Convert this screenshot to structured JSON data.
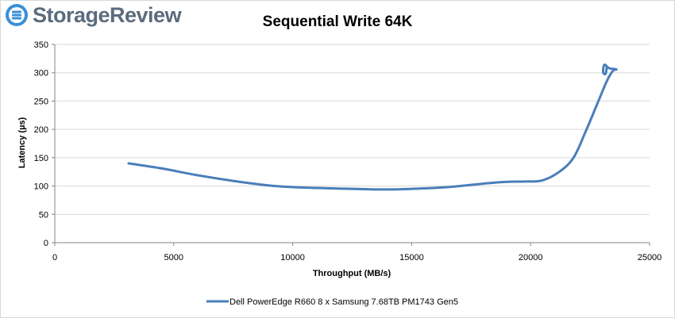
{
  "brand": {
    "name": "StorageReview",
    "icon": "storagereview-logo-icon"
  },
  "colors": {
    "series": "#4a7ebb",
    "grid": "#d9d9d9",
    "axis": "#868686",
    "brand": "#5b6b7c"
  },
  "chart_data": {
    "type": "line",
    "title": "Sequential Write 64K",
    "xlabel": "Throughput (MB/s)",
    "ylabel": "Latency (µs)",
    "xlim": [
      0,
      25000
    ],
    "ylim": [
      0,
      350
    ],
    "xticks": [
      0,
      5000,
      10000,
      15000,
      20000,
      25000
    ],
    "yticks": [
      0,
      50,
      100,
      150,
      200,
      250,
      300,
      350
    ],
    "grid": "horizontal",
    "legend_position": "bottom",
    "series": [
      {
        "name": "Dell PowerEdge R660 8 x Samsung 7.68TB PM1743 Gen5",
        "color": "#4a7ebb",
        "points": [
          [
            3100,
            140
          ],
          [
            4500,
            131
          ],
          [
            6000,
            119
          ],
          [
            7500,
            109
          ],
          [
            9000,
            101
          ],
          [
            10000,
            98
          ],
          [
            11500,
            96
          ],
          [
            12500,
            95
          ],
          [
            13800,
            94
          ],
          [
            15000,
            95
          ],
          [
            16500,
            98
          ],
          [
            17500,
            102
          ],
          [
            18800,
            107
          ],
          [
            19800,
            108
          ],
          [
            20500,
            110
          ],
          [
            21200,
            125
          ],
          [
            21800,
            150
          ],
          [
            22300,
            195
          ],
          [
            22800,
            245
          ],
          [
            23200,
            285
          ],
          [
            23450,
            303
          ],
          [
            23600,
            306
          ],
          [
            23300,
            308
          ],
          [
            23100,
            314
          ],
          [
            23050,
            301
          ],
          [
            23150,
            298
          ],
          [
            23200,
            310
          ]
        ]
      }
    ]
  }
}
